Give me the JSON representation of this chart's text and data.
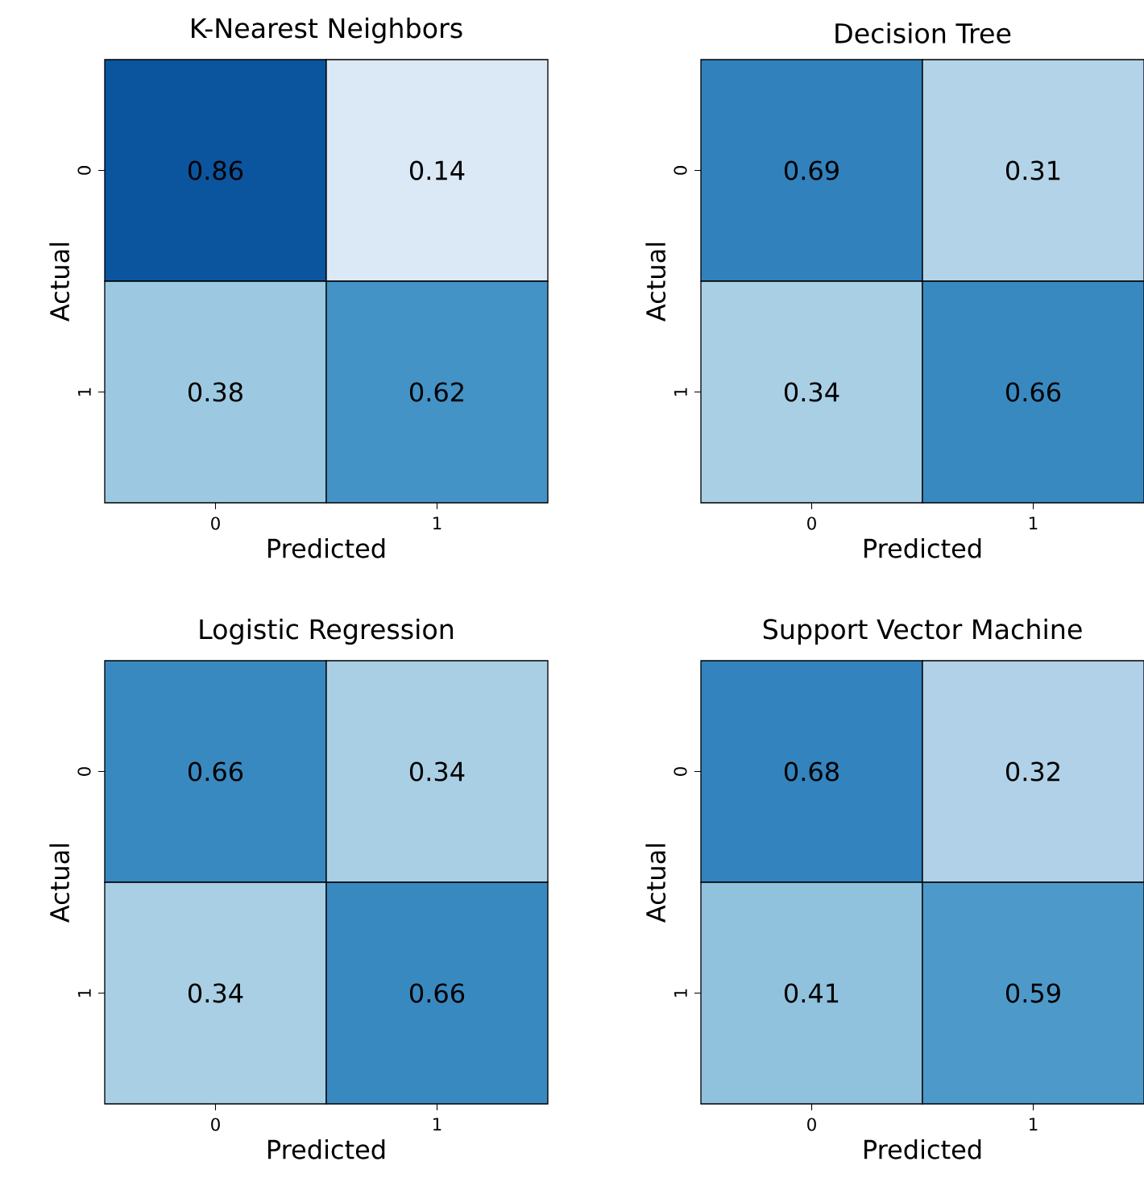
{
  "chart_data": [
    {
      "type": "heatmap",
      "title": "K-Nearest Neighbors",
      "xlabel": "Predicted",
      "ylabel": "Actual",
      "categories": [
        "0",
        "1"
      ],
      "y_categories": [
        "0",
        "1"
      ],
      "cells": [
        [
          0.86,
          0.14
        ],
        [
          0.38,
          0.62
        ]
      ],
      "data_labels": true
    },
    {
      "type": "heatmap",
      "title": "Decision Tree",
      "xlabel": "Predicted",
      "ylabel": "Actual",
      "categories": [
        "0",
        "1"
      ],
      "y_categories": [
        "0",
        "1"
      ],
      "cells": [
        [
          0.69,
          0.31
        ],
        [
          0.34,
          0.66
        ]
      ],
      "data_labels": true
    },
    {
      "type": "heatmap",
      "title": "Logistic Regression",
      "xlabel": "Predicted",
      "ylabel": "Actual",
      "categories": [
        "0",
        "1"
      ],
      "y_categories": [
        "0",
        "1"
      ],
      "cells": [
        [
          0.66,
          0.34
        ],
        [
          0.34,
          0.66
        ]
      ],
      "data_labels": true
    },
    {
      "type": "heatmap",
      "title": "Support Vector Machine",
      "xlabel": "Predicted",
      "ylabel": "Actual",
      "categories": [
        "0",
        "1"
      ],
      "y_categories": [
        "0",
        "1"
      ],
      "cells": [
        [
          0.68,
          0.32
        ],
        [
          0.41,
          0.59
        ]
      ],
      "data_labels": true
    }
  ]
}
